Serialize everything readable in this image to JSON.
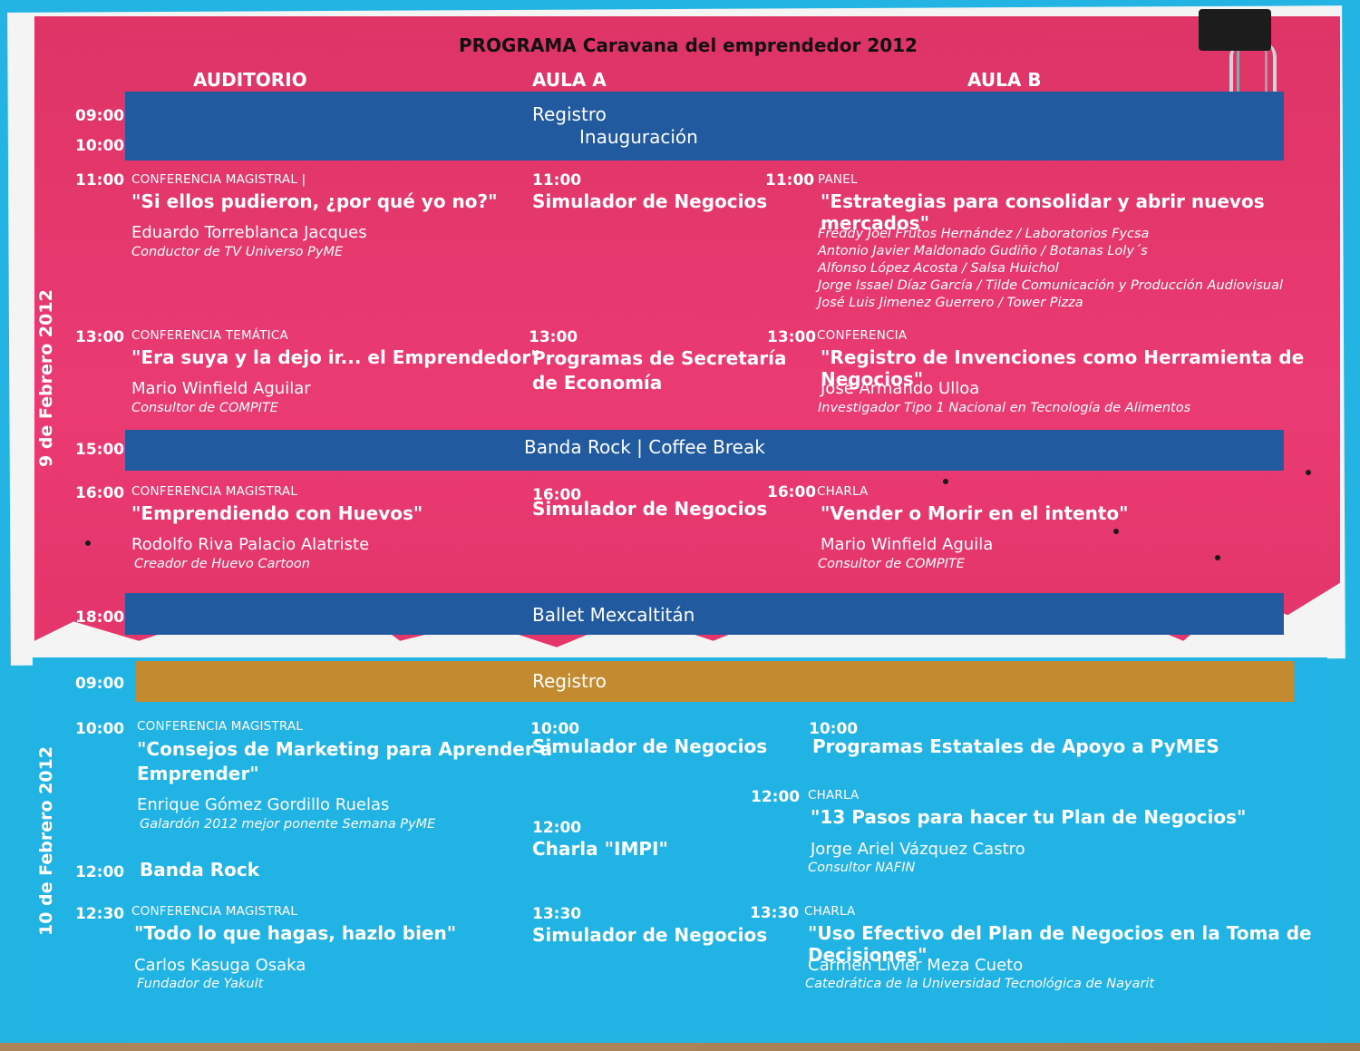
{
  "title": "PROGRAMA Caravana del emprendedor 2012",
  "columns": [
    "AUDITORIO",
    "AULA A",
    "AULA B"
  ],
  "day1": {
    "label": "9 de Febrero 2012",
    "band1": {
      "t1": "09:00",
      "t2": "10:00",
      "line1": "Registro",
      "line2": "Inauguración"
    },
    "s11": {
      "aud": {
        "time": "11:00",
        "type": "CONFERENCIA MAGISTRAL  |",
        "talk": "\"Si ellos pudieron, ¿por qué yo no?\"",
        "speaker": "Eduardo Torreblanca Jacques",
        "affil": "Conductor de TV Universo PyME"
      },
      "aulaA": {
        "time": "11:00",
        "talk": "Simulador de Negocios"
      },
      "aulaB": {
        "time": "11:00",
        "type": "PANEL",
        "talk": "\"Estrategias para consolidar y abrir nuevos mercados\"",
        "panel": [
          "Freddy Joel Frutos Hernández / Laboratorios Fycsa",
          "Antonio Javier Maldonado Gudiño / Botanas Loly´s",
          "Alfonso López Acosta / Salsa Huichol",
          "Jorge Issael Díaz García / Tilde Comunicación y Producción Audiovisual",
          "José Luis Jimenez Guerrero  / Tower Pizza"
        ]
      }
    },
    "s13": {
      "aud": {
        "time": "13:00",
        "type": "CONFERENCIA TEMÁTICA",
        "talk": "\"Era suya y la dejo ir... el Emprendedor\"",
        "speaker": "Mario Winfield Aguilar",
        "affil": "Consultor de COMPITE"
      },
      "aulaA": {
        "time": "13:00",
        "talk1": "Programas de Secretaría",
        "talk2": "de Economía"
      },
      "aulaB": {
        "time": "13:00",
        "type": "CONFERENCIA",
        "talk": "\"Registro de Invenciones como Herramienta de Negocios\"",
        "speaker": "José Armando Ulloa",
        "affil": "Investigador Tipo 1 Nacional en Tecnología de Alimentos"
      }
    },
    "band15": {
      "time": "15:00",
      "text": "Banda Rock | Coffee Break"
    },
    "s16": {
      "aud": {
        "time": "16:00",
        "type": "CONFERENCIA MAGISTRAL",
        "talk": "\"Emprendiendo con Huevos\"",
        "speaker": "Rodolfo Riva Palacio Alatriste",
        "affil": "Creador de Huevo Cartoon"
      },
      "aulaA": {
        "time": "16:00",
        "talk": "Simulador de Negocios"
      },
      "aulaB": {
        "time": "16:00",
        "type": "CHARLA",
        "talk": "\"Vender o Morir en el intento\"",
        "speaker": "Mario Winfield Aguila",
        "affil": "Consultor de COMPITE"
      }
    },
    "band18": {
      "time": "18:00",
      "text": "Ballet Mexcaltitán"
    }
  },
  "day2": {
    "label": "10 de Febrero 2012",
    "band9": {
      "time": "09:00",
      "text": "Registro"
    },
    "s10": {
      "aud": {
        "time": "10:00",
        "type": "CONFERENCIA MAGISTRAL",
        "talk1": "\"Consejos de Marketing para Aprender a",
        "talk2": "Emprender\"",
        "speaker": "Enrique Gómez Gordillo Ruelas",
        "affil": "Galardón 2012 mejor ponente Semana PyME"
      },
      "aulaA": {
        "time": "10:00",
        "talk": "Simulador de Negocios"
      },
      "aulaB": {
        "time": "10:00",
        "talk": "Programas Estatales de Apoyo a PyMES"
      }
    },
    "s12": {
      "aud": {
        "time": "12:00",
        "talk": "Banda Rock"
      },
      "aulaA": {
        "time": "12:00",
        "talk": "Charla  \"IMPI\""
      },
      "aulaB": {
        "time": "12:00",
        "type": "CHARLA",
        "talk": "\"13 Pasos para hacer tu Plan de Negocios\"",
        "speaker": "Jorge Ariel Vázquez Castro",
        "affil": "Consultor NAFIN"
      }
    },
    "s1230": {
      "aud": {
        "time": "12:30",
        "type": "CONFERENCIA MAGISTRAL",
        "talk": "\"Todo lo que hagas, hazlo bien\"",
        "speaker": "Carlos Kasuga Osaka",
        "affil": "Fundador de Yakult"
      }
    },
    "s1330": {
      "aulaA": {
        "time": "13:30",
        "talk": "Simulador de Negocios"
      },
      "aulaB": {
        "time": "13:30",
        "type": "CHARLA",
        "talk": "\"Uso Efectivo del Plan de Negocios en la Toma de Decisiones\"",
        "speaker": "Carmen Livier Meza Cueto",
        "affil": "Catedrática de la Universidad Tecnológica de Nayarit"
      }
    }
  },
  "colors": {
    "pink": "#e3356a",
    "blue": "#22b3e5",
    "navy": "#215a9e",
    "gold": "#c38a2f"
  }
}
